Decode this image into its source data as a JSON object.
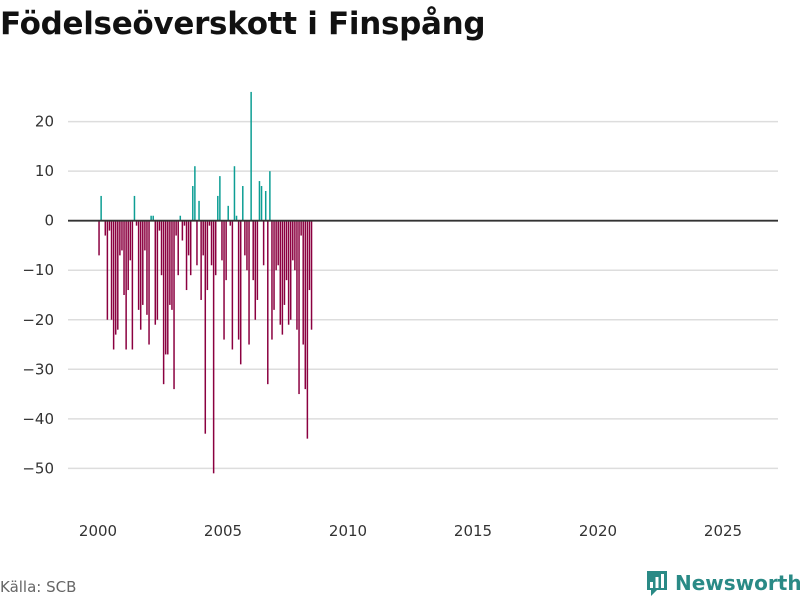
{
  "title": "Födelseöverskott i Finspång",
  "source": "Källa: SCB",
  "brand": "Newsworthy",
  "colors": {
    "positive": "#0d9e94",
    "negative": "#8b0040",
    "grid": "#dddddd",
    "zero": "#333333",
    "text": "#333333",
    "brand": "#2a8a86"
  },
  "chart_data": {
    "type": "bar",
    "title": "Födelseöverskott i Finspång",
    "xlabel": "",
    "ylabel": "",
    "ylim": [
      -58,
      28
    ],
    "xlim": [
      1998.8,
      2027.2
    ],
    "y_ticks": [
      20,
      10,
      0,
      -10,
      -20,
      -30,
      -40,
      -50
    ],
    "y_tick_labels": [
      "20",
      "10",
      "0",
      "−10",
      "−20",
      "−30",
      "−40",
      "−50"
    ],
    "x_ticks": [
      2000,
      2005,
      2010,
      2015,
      2020,
      2025
    ],
    "x_tick_labels": [
      "2000",
      "2005",
      "2010",
      "2015",
      "2020",
      "2025"
    ],
    "period": "monthly",
    "start": {
      "year": 2000,
      "month": 1
    },
    "values": [
      -7,
      5,
      0,
      -3,
      -20,
      -2,
      -20,
      -26,
      -23,
      -22,
      -7,
      -6,
      -15,
      -26,
      -14,
      -8,
      -26,
      5,
      -1,
      -18,
      -22,
      -17,
      -6,
      -19,
      -25,
      1,
      1,
      -21,
      -20,
      -2,
      -11,
      -33,
      -27,
      -27,
      -17,
      -18,
      -34,
      -3,
      -11,
      1,
      -4,
      -1,
      -14,
      -7,
      -11,
      7,
      11,
      -9,
      4,
      -16,
      -7,
      -43,
      -14,
      -1,
      -9,
      -51,
      -11,
      5,
      9,
      -8,
      -24,
      -12,
      3,
      -1,
      -26,
      11,
      1,
      -24,
      -29,
      7,
      -7,
      -10,
      -25,
      26,
      -12,
      -20,
      -16,
      8,
      7,
      -9,
      6,
      -33,
      10,
      -24,
      -18,
      -10,
      -9,
      -21,
      -23,
      -17,
      -12,
      -21,
      -20,
      -8,
      -10,
      -22,
      -35,
      -3,
      -25,
      -34,
      -44,
      -14,
      -22
    ]
  }
}
